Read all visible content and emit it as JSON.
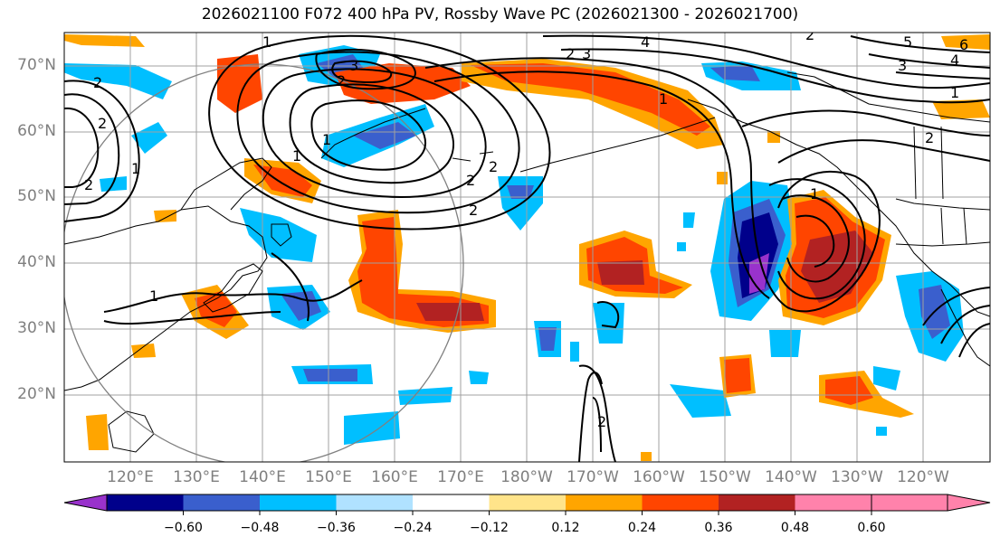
{
  "title": "2026021100 F072 400 hPa PV, Rossby Wave PC (2026021300 - 2026021700)",
  "lat_labels": [
    "70°N",
    "60°N",
    "50°N",
    "40°N",
    "30°N",
    "20°N"
  ],
  "lon_labels": [
    "120°E",
    "130°E",
    "140°E",
    "150°E",
    "160°E",
    "170°E",
    "180°W",
    "170°W",
    "160°W",
    "150°W",
    "140°W",
    "130°W",
    "120°W"
  ],
  "colorbar": {
    "tick_labels": [
      "−0.60",
      "−0.48",
      "−0.36",
      "−0.24",
      "−0.12",
      "0.12",
      "0.24",
      "0.36",
      "0.48",
      "0.60"
    ],
    "colors": [
      "#9932cc",
      "#00008b",
      "#3a5fcd",
      "#00bfff",
      "#b0e2ff",
      "#ffffff",
      "#ffe48a",
      "#ffa500",
      "#ff4500",
      "#b22222",
      "#ff82ab"
    ]
  },
  "contour_labels": [
    "2",
    "3",
    "4",
    "2",
    "3",
    "2",
    "1",
    "2",
    "2",
    "1",
    "2",
    "1",
    "2",
    "1",
    "2",
    "2",
    "1",
    "2",
    "3",
    "4",
    "5",
    "6",
    "1",
    "2",
    "1",
    "1"
  ]
}
